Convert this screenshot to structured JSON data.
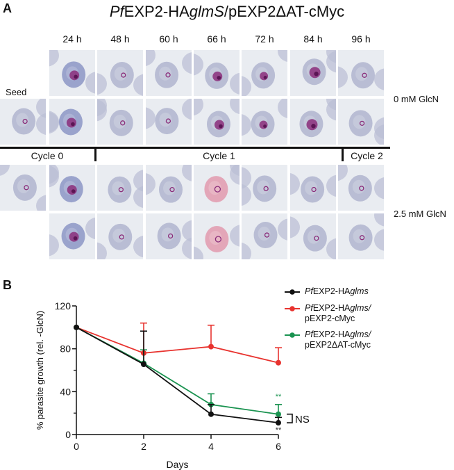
{
  "panel_a": {
    "letter": "A",
    "title_parts": [
      {
        "text": "Pf",
        "italic": true
      },
      {
        "text": "EXP2-HA",
        "italic": false
      },
      {
        "text": "glmS",
        "italic": true
      },
      {
        "text": "/pEXP2ΔAT-cMyc",
        "italic": false
      }
    ],
    "seed_label": "Seed",
    "time_labels": [
      "24 h",
      "48 h",
      "60 h",
      "66 h",
      "72 h",
      "84 h",
      "96 h"
    ],
    "condition_labels": [
      "0 mM GlcN",
      "2.5 mM GlcN"
    ],
    "cycle_labels": [
      "Cycle 0",
      "Cycle 1",
      "Cycle 2"
    ],
    "tile_colors": {
      "background": "#e9ecf1",
      "rbc": "#b9bdd4",
      "rbc_blue": "#9aa3cc",
      "rbc_pink": "#e3a6b8",
      "parasite": "#8a2d7a"
    }
  },
  "panel_b": {
    "letter": "B",
    "legend": [
      {
        "line1_parts": [
          {
            "text": "Pf",
            "italic": true
          },
          {
            "text": "EXP2-HA",
            "italic": false
          },
          {
            "text": "glms",
            "italic": true
          }
        ],
        "line2": "",
        "color": "#111111"
      },
      {
        "line1_parts": [
          {
            "text": "Pf",
            "italic": true
          },
          {
            "text": "EXP2-HA",
            "italic": false
          },
          {
            "text": "glms",
            "italic": true
          },
          {
            "text": "/",
            "italic": true
          }
        ],
        "line2": "pEXP2-cMyc",
        "color": "#e8332f"
      },
      {
        "line1_parts": [
          {
            "text": "Pf",
            "italic": true
          },
          {
            "text": "EXP2-HA",
            "italic": false
          },
          {
            "text": "glms",
            "italic": true
          },
          {
            "text": "/",
            "italic": true
          }
        ],
        "line2": "pEXP2ΔAT-cMyc",
        "color": "#1a9350"
      }
    ],
    "annotations": {
      "ns": "NS",
      "sig_green": "**",
      "sig_black": "**"
    }
  },
  "chart_data": {
    "type": "line",
    "title": "",
    "xlabel": "Days",
    "ylabel": "% parasite growth (rel. -GlcN)",
    "x": [
      0,
      2,
      4,
      6
    ],
    "xticks": [
      0,
      2,
      4,
      6
    ],
    "yticks": [
      0,
      40,
      80,
      120
    ],
    "ylim": [
      0,
      120
    ],
    "xlim": [
      0,
      6
    ],
    "grid": false,
    "legend_position": "top-right",
    "series": [
      {
        "name": "PfEXP2-HAglms",
        "color": "#111111",
        "values": [
          100,
          65.5,
          19,
          11
        ],
        "error_upper": [
          100,
          96.5,
          28,
          16
        ]
      },
      {
        "name": "PfEXP2-HAglms/pEXP2-cMyc",
        "color": "#e8332f",
        "values": [
          100,
          76,
          82,
          67
        ],
        "error_upper": [
          100,
          104,
          102,
          81
        ]
      },
      {
        "name": "PfEXP2-HAglms/pEXP2ΔAT-cMyc",
        "color": "#1a9350",
        "values": [
          100,
          66.5,
          28,
          19
        ],
        "error_upper": [
          100,
          79,
          38,
          28
        ]
      }
    ],
    "annotations": [
      {
        "text": "**",
        "x": 6,
        "series": "PfEXP2-HAglms/pEXP2ΔAT-cMyc",
        "position": "above"
      },
      {
        "text": "**",
        "x": 6,
        "series": "PfEXP2-HAglms",
        "position": "below"
      },
      {
        "text": "NS",
        "x": 6,
        "note": "bracket between green and black at day 6"
      }
    ]
  }
}
